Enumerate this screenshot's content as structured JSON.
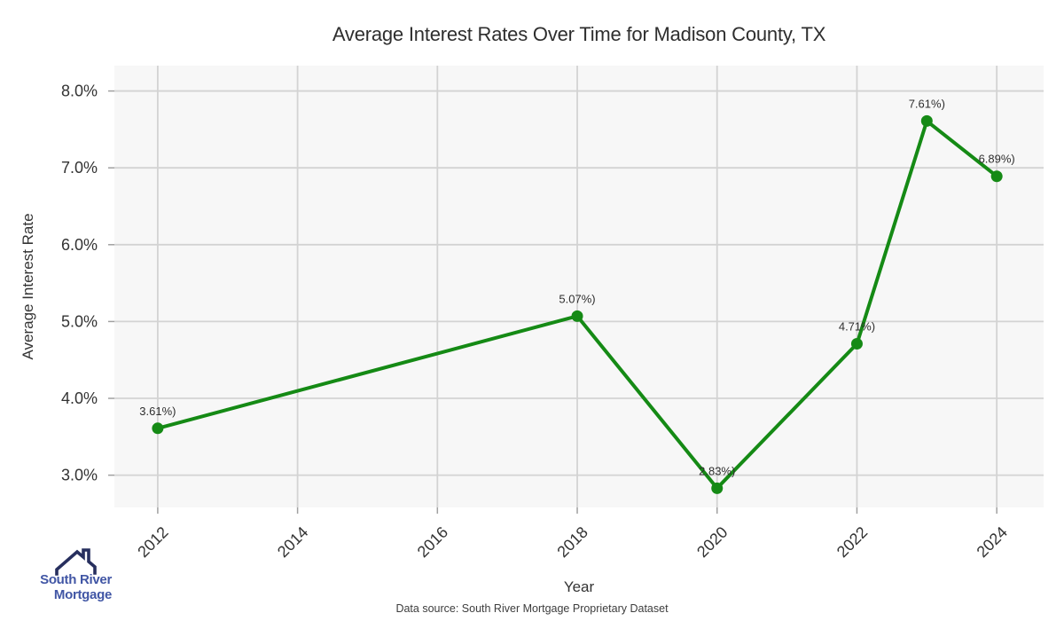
{
  "chart_data": {
    "type": "line",
    "title": "Average Interest Rates Over Time for Madison County, TX",
    "xlabel": "Year",
    "ylabel": "Average Interest Rate",
    "x": [
      2012,
      2018,
      2020,
      2022,
      2023,
      2024
    ],
    "y": [
      3.61,
      5.07,
      2.83,
      4.71,
      7.61,
      6.89
    ],
    "point_labels": [
      "3.61%)",
      "5.07%)",
      "2.83%)",
      "4.71%)",
      "7.61%)",
      "6.89%)"
    ],
    "x_ticks": [
      2012,
      2014,
      2016,
      2018,
      2020,
      2022,
      2024
    ],
    "x_tick_labels": [
      "2012",
      "2014",
      "2016",
      "2018",
      "2020",
      "2022",
      "2024"
    ],
    "y_ticks": [
      3,
      4,
      5,
      6,
      7,
      8
    ],
    "y_tick_labels": [
      "3.0%",
      "4.0%",
      "5.0%",
      "6.0%",
      "7.0%",
      "8.0%"
    ],
    "xlim": [
      2011.38,
      2024.67
    ],
    "ylim": [
      2.58,
      8.33
    ],
    "grid": true,
    "legend": "none",
    "line_color": "#158a15",
    "marker_color": "#158a15",
    "plot_bg": "#f7f7f7",
    "grid_color": "#d3d3d3",
    "tick_color": "#a0a0a0",
    "text_color": "#333333",
    "label_text_color": "#2e2e2e"
  },
  "footer": {
    "data_source": "Data source: South River Mortgage Proprietary Dataset"
  },
  "logo": {
    "line1": "South River",
    "line2": "Mortgage",
    "text_color": "#4156a5",
    "icon_color": "#272f5e"
  }
}
